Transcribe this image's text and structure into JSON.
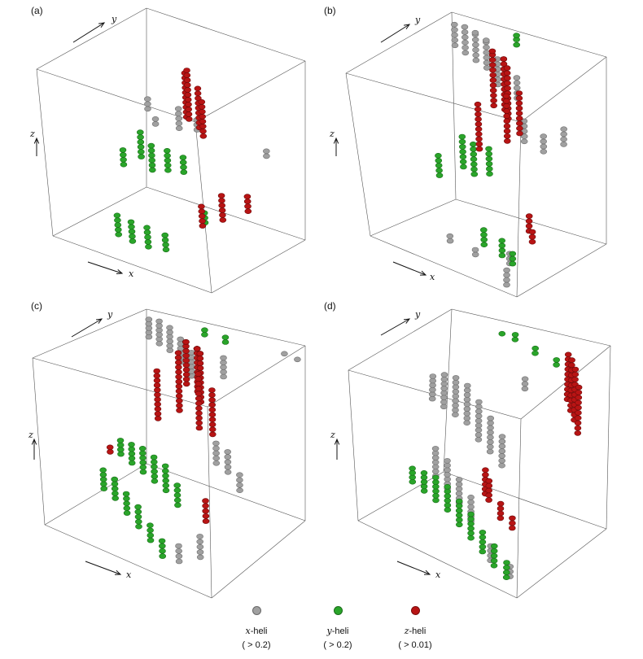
{
  "chart_data": {
    "type": "scatter",
    "subtype": "3d-scatter-panels",
    "series": [
      {
        "name": "x-heli",
        "axis": "x",
        "suffix": "-heli",
        "threshold": "( > 0.2)",
        "color": "#a0a0a0"
      },
      {
        "name": "y-heli",
        "axis": "y",
        "suffix": "-heli",
        "threshold": "( > 0.2)",
        "color": "#2aa52a"
      },
      {
        "name": "z-heli",
        "axis": "z",
        "suffix": "-heli",
        "threshold": "( > 0.01)",
        "color": "#b81414"
      }
    ],
    "axes": {
      "x": "x",
      "y": "y",
      "z": "z"
    },
    "panels": [
      {
        "label": "(a)",
        "points": {
          "gray": [
            [
              0.15,
              0.78,
              0.55,
              3
            ],
            [
              0.5,
              0.55,
              0.62,
              5
            ],
            [
              0.58,
              0.6,
              0.62,
              3
            ],
            [
              0.95,
              0.7,
              0.55,
              2
            ],
            [
              0.25,
              0.7,
              0.52,
              2
            ]
          ],
          "green": [
            [
              0.25,
              0.55,
              0.38,
              6
            ],
            [
              0.35,
              0.5,
              0.35,
              6
            ],
            [
              0.45,
              0.5,
              0.38,
              5
            ],
            [
              0.2,
              0.45,
              0.35,
              4
            ],
            [
              0.55,
              0.5,
              0.4,
              4
            ],
            [
              0.3,
              0.2,
              0.05,
              5
            ],
            [
              0.4,
              0.18,
              0.05,
              5
            ],
            [
              0.5,
              0.18,
              0.05,
              5
            ],
            [
              0.6,
              0.2,
              0.06,
              4
            ],
            [
              0.8,
              0.3,
              0.25,
              3
            ]
          ],
          "red": [
            [
              0.55,
              0.55,
              0.7,
              10
            ],
            [
              0.6,
              0.5,
              0.72,
              11
            ],
            [
              0.65,
              0.52,
              0.68,
              9
            ],
            [
              0.7,
              0.48,
              0.66,
              8
            ],
            [
              0.85,
              0.4,
              0.25,
              6
            ],
            [
              0.75,
              0.35,
              0.2,
              5
            ],
            [
              0.95,
              0.5,
              0.3,
              4
            ]
          ]
        }
      },
      {
        "label": "(b)",
        "points": {
          "gray": [
            [
              0.05,
              0.95,
              0.85,
              5
            ],
            [
              0.15,
              0.9,
              0.85,
              6
            ],
            [
              0.25,
              0.85,
              0.85,
              7
            ],
            [
              0.35,
              0.8,
              0.85,
              7
            ],
            [
              0.45,
              0.75,
              0.8,
              6
            ],
            [
              0.6,
              0.7,
              0.78,
              5
            ],
            [
              0.7,
              0.6,
              0.6,
              5
            ],
            [
              0.85,
              0.55,
              0.6,
              4
            ],
            [
              0.95,
              0.6,
              0.65,
              4
            ],
            [
              0.4,
              0.25,
              0.05,
              2
            ],
            [
              0.6,
              0.2,
              0.05,
              2
            ],
            [
              0.8,
              0.25,
              0.05,
              3
            ],
            [
              0.9,
              0.05,
              0.02,
              4
            ]
          ],
          "green": [
            [
              0.3,
              0.6,
              0.35,
              7
            ],
            [
              0.4,
              0.55,
              0.35,
              7
            ],
            [
              0.5,
              0.55,
              0.38,
              6
            ],
            [
              0.2,
              0.5,
              0.3,
              5
            ],
            [
              0.45,
              0.95,
              0.95,
              3
            ],
            [
              0.6,
              0.3,
              0.08,
              4
            ],
            [
              0.75,
              0.25,
              0.08,
              4
            ],
            [
              0.85,
              0.2,
              0.08,
              3
            ]
          ],
          "red": [
            [
              0.45,
              0.7,
              0.7,
              12
            ],
            [
              0.55,
              0.65,
              0.72,
              12
            ],
            [
              0.6,
              0.6,
              0.7,
              11
            ],
            [
              0.65,
              0.5,
              0.62,
              10
            ],
            [
              0.5,
              0.45,
              0.55,
              10
            ],
            [
              0.7,
              0.55,
              0.66,
              9
            ],
            [
              0.9,
              0.3,
              0.25,
              4
            ],
            [
              0.95,
              0.25,
              0.22,
              3
            ]
          ]
        }
      },
      {
        "label": "(c)",
        "points": {
          "gray": [
            [
              0.05,
              0.95,
              0.85,
              5
            ],
            [
              0.15,
              0.9,
              0.85,
              6
            ],
            [
              0.25,
              0.85,
              0.85,
              6
            ],
            [
              0.35,
              0.8,
              0.82,
              6
            ],
            [
              0.45,
              0.75,
              0.78,
              6
            ],
            [
              0.55,
              0.9,
              0.75,
              5
            ],
            [
              0.75,
              0.5,
              0.45,
              5
            ],
            [
              0.85,
              0.45,
              0.45,
              5
            ],
            [
              0.95,
              0.4,
              0.4,
              4
            ],
            [
              0.9,
              0.95,
              0.95,
              1
            ],
            [
              1.0,
              0.92,
              0.95,
              1
            ],
            [
              0.85,
              0.15,
              0.1,
              5
            ],
            [
              0.75,
              0.1,
              0.06,
              4
            ]
          ],
          "green": [
            [
              0.1,
              0.6,
              0.25,
              4
            ],
            [
              0.2,
              0.55,
              0.25,
              5
            ],
            [
              0.3,
              0.5,
              0.25,
              6
            ],
            [
              0.4,
              0.45,
              0.25,
              6
            ],
            [
              0.5,
              0.4,
              0.25,
              6
            ],
            [
              0.6,
              0.35,
              0.22,
              5
            ],
            [
              0.15,
              0.35,
              0.15,
              5
            ],
            [
              0.25,
              0.3,
              0.15,
              5
            ],
            [
              0.35,
              0.25,
              0.12,
              5
            ],
            [
              0.45,
              0.2,
              0.1,
              5
            ],
            [
              0.55,
              0.15,
              0.08,
              4
            ],
            [
              0.65,
              0.1,
              0.05,
              4
            ],
            [
              0.4,
              0.95,
              0.95,
              2
            ],
            [
              0.55,
              0.92,
              0.95,
              2
            ]
          ],
          "red": [
            [
              0.45,
              0.7,
              0.75,
              14
            ],
            [
              0.55,
              0.65,
              0.75,
              14
            ],
            [
              0.6,
              0.6,
              0.72,
              13
            ],
            [
              0.5,
              0.55,
              0.66,
              13
            ],
            [
              0.65,
              0.5,
              0.62,
              12
            ],
            [
              0.4,
              0.5,
              0.6,
              11
            ],
            [
              0.7,
              0.55,
              0.58,
              10
            ],
            [
              0.8,
              0.3,
              0.22,
              5
            ],
            [
              0.1,
              0.5,
              0.3,
              2
            ]
          ]
        }
      },
      {
        "label": "(d)",
        "points": {
          "gray": [
            [
              0.05,
              0.75,
              0.55,
              6
            ],
            [
              0.15,
              0.7,
              0.55,
              8
            ],
            [
              0.25,
              0.65,
              0.55,
              9
            ],
            [
              0.35,
              0.6,
              0.55,
              9
            ],
            [
              0.45,
              0.55,
              0.5,
              9
            ],
            [
              0.55,
              0.5,
              0.48,
              8
            ],
            [
              0.65,
              0.45,
              0.45,
              7
            ],
            [
              0.3,
              0.35,
              0.3,
              7
            ],
            [
              0.4,
              0.3,
              0.28,
              7
            ],
            [
              0.5,
              0.25,
              0.25,
              6
            ],
            [
              0.6,
              0.2,
              0.2,
              6
            ],
            [
              0.7,
              0.6,
              0.85,
              3
            ],
            [
              0.75,
              0.15,
              0.05,
              4
            ],
            [
              0.9,
              0.1,
              0.04,
              3
            ]
          ],
          "green": [
            [
              0.1,
              0.45,
              0.15,
              4
            ],
            [
              0.2,
              0.4,
              0.15,
              5
            ],
            [
              0.3,
              0.35,
              0.15,
              6
            ],
            [
              0.4,
              0.3,
              0.15,
              6
            ],
            [
              0.5,
              0.25,
              0.12,
              6
            ],
            [
              0.6,
              0.2,
              0.1,
              6
            ],
            [
              0.7,
              0.15,
              0.08,
              5
            ],
            [
              0.8,
              0.1,
              0.06,
              5
            ],
            [
              0.9,
              0.06,
              0.05,
              4
            ],
            [
              0.35,
              0.95,
              0.95,
              1
            ],
            [
              0.45,
              0.92,
              0.95,
              2
            ],
            [
              0.6,
              0.88,
              0.92,
              2
            ],
            [
              0.75,
              0.85,
              0.9,
              2
            ]
          ],
          "red": [
            [
              0.85,
              0.8,
              0.75,
              10
            ],
            [
              0.9,
              0.75,
              0.72,
              11
            ],
            [
              0.95,
              0.7,
              0.7,
              11
            ],
            [
              1.0,
              0.65,
              0.66,
              10
            ],
            [
              0.55,
              0.45,
              0.25,
              6
            ],
            [
              0.6,
              0.4,
              0.25,
              5
            ],
            [
              0.7,
              0.35,
              0.2,
              4
            ],
            [
              0.8,
              0.3,
              0.2,
              3
            ]
          ]
        }
      }
    ],
    "grid": false,
    "legend_position": "bottom-center"
  }
}
